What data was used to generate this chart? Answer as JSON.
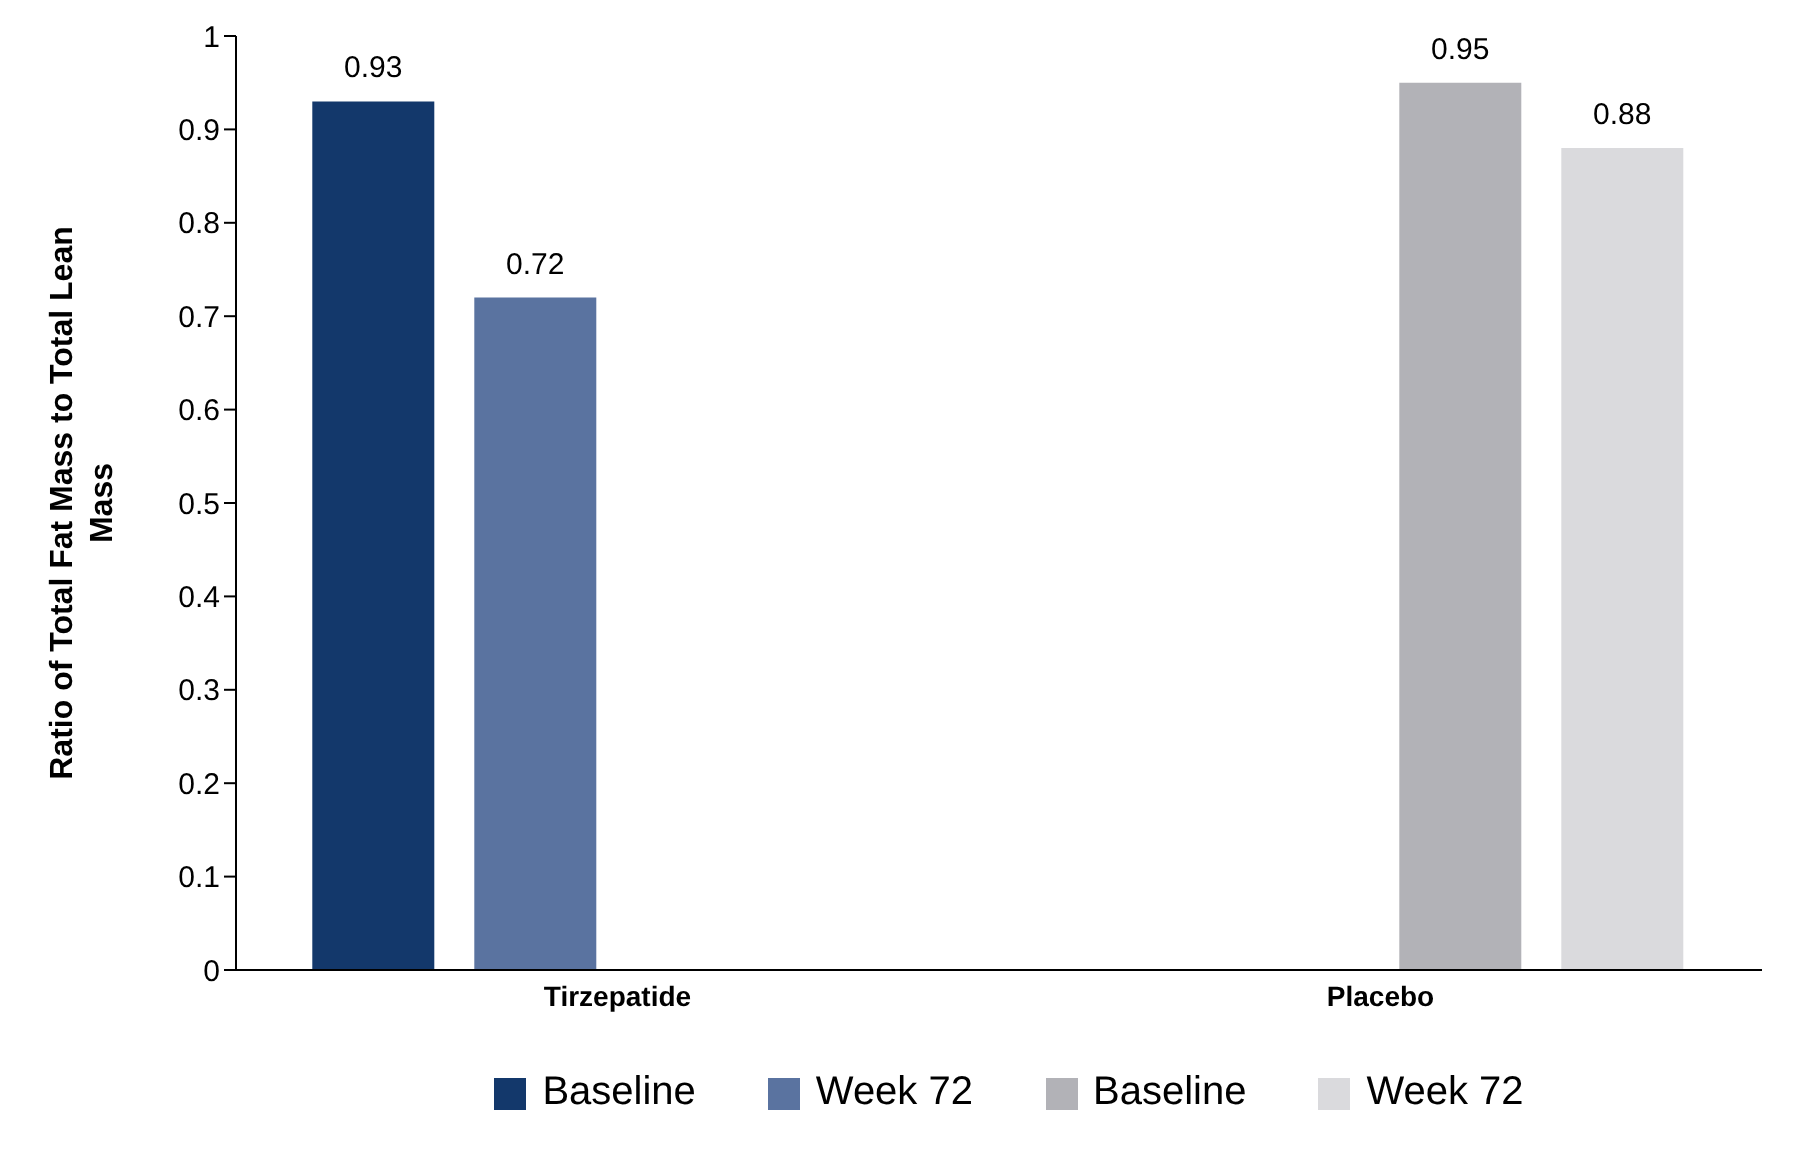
{
  "chart_data": {
    "type": "bar",
    "ylabel": "Ratio of Total Fat Mass to Total Lean Mass",
    "categories": [
      "Tirzepatide",
      "Placebo"
    ],
    "series": [
      {
        "name": "Baseline",
        "color": "#13386b",
        "values": [
          0.93,
          null
        ]
      },
      {
        "name": "Week 72",
        "color": "#5a73a0",
        "values": [
          0.72,
          null
        ]
      },
      {
        "name": "Baseline",
        "color": "#b2b2b7",
        "values": [
          null,
          0.95
        ]
      },
      {
        "name": "Week 72",
        "color": "#dadadd",
        "values": [
          null,
          0.88
        ]
      }
    ],
    "ylim": [
      0,
      1
    ],
    "yticks": [
      0,
      0.1,
      0.2,
      0.3,
      0.4,
      0.5,
      0.6,
      0.7,
      0.8,
      0.9,
      1
    ],
    "grid": false,
    "legend": "bottom",
    "data_labels": true
  }
}
